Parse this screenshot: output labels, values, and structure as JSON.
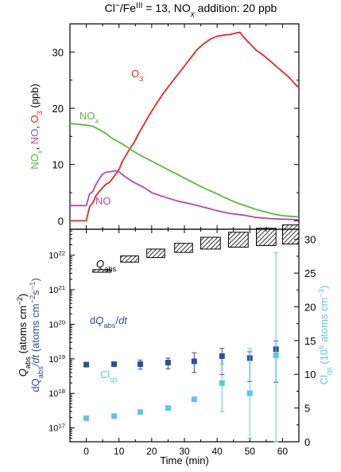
{
  "figure": {
    "title_parts": [
      "Cl",
      "−",
      "/Fe",
      "III",
      " = 13, NO",
      "x",
      " addition: 20 ppb"
    ],
    "xlabel": "Time (min)"
  },
  "colors": {
    "o3": "#ee2222",
    "nox": "#5cb83a",
    "no": "#b24aa8",
    "dq": "#2e4d9e",
    "cl": "#5cc8de",
    "axis": "#000000"
  },
  "chart_data": [
    {
      "type": "line",
      "panel": "top",
      "ylabel_parts": [
        "NO",
        "x",
        ", ",
        "NO",
        ", ",
        "O",
        "3",
        " (ppb)"
      ],
      "xlim": [
        -5,
        65
      ],
      "ylim": [
        -1.5,
        35
      ],
      "x_ticks": [
        0,
        10,
        20,
        30,
        40,
        50,
        60
      ],
      "y_ticks": [
        0,
        10,
        20,
        30
      ],
      "series": [
        {
          "name": "O3",
          "label_parts": [
            "O",
            "3"
          ],
          "x": [
            -5,
            0,
            0.4,
            1,
            2,
            3,
            4,
            5,
            6,
            7,
            8,
            9,
            10,
            11,
            12,
            13,
            14,
            15,
            16,
            17,
            18,
            20,
            22,
            24,
            26,
            28,
            30,
            32,
            34,
            36,
            38,
            40,
            42,
            44,
            46,
            47,
            48,
            50,
            52,
            54,
            56,
            58,
            60,
            62,
            64,
            65
          ],
          "y": [
            0,
            0,
            1,
            2.5,
            3.2,
            4.5,
            5.2,
            5.9,
            6.5,
            6.8,
            7.5,
            8.3,
            9.1,
            10.5,
            11.5,
            12.5,
            13.4,
            14.3,
            15.5,
            16.5,
            17.5,
            19.5,
            21.3,
            23,
            24.5,
            26,
            27.5,
            29,
            30.5,
            31.5,
            32.3,
            32.8,
            33,
            33.1,
            33.4,
            33.5,
            32.7,
            31.5,
            30.3,
            29.5,
            28.5,
            27.5,
            26.5,
            25.5,
            24.2,
            23.7
          ]
        },
        {
          "name": "NOx",
          "label_parts": [
            "NO",
            "x"
          ],
          "x": [
            -5,
            0,
            2,
            4,
            6,
            8,
            10,
            12,
            14,
            16,
            18,
            20,
            22,
            24,
            26,
            28,
            30,
            32,
            34,
            36,
            38,
            40,
            42,
            44,
            46,
            48,
            50,
            52,
            54,
            56,
            58,
            60,
            62,
            65
          ],
          "y": [
            17.3,
            17,
            16.8,
            16.2,
            15.5,
            14.6,
            14,
            13.3,
            12.5,
            11.8,
            11.2,
            10.6,
            10,
            9.4,
            8.8,
            8.2,
            7.6,
            7,
            6.4,
            5.8,
            5.3,
            4.8,
            4.2,
            3.7,
            3.2,
            2.8,
            2.4,
            2,
            1.7,
            1.4,
            1.1,
            0.9,
            0.8,
            0.7
          ]
        },
        {
          "name": "NO",
          "label_parts": [
            "NO"
          ],
          "x": [
            -5,
            0,
            0.4,
            1,
            2,
            3,
            4,
            5,
            6,
            7,
            8,
            9,
            10,
            12,
            14,
            16,
            18,
            20,
            24,
            28,
            32,
            36,
            40,
            44,
            48,
            52,
            56,
            60,
            65
          ],
          "y": [
            2.7,
            2.7,
            3.5,
            4.8,
            5.2,
            6.5,
            7.5,
            8.3,
            8.6,
            8.7,
            8.8,
            8.9,
            8.7,
            7.8,
            7,
            6.4,
            5.8,
            5,
            4.2,
            3.5,
            3,
            2.4,
            1.8,
            1.3,
            1,
            0.6,
            0.4,
            0.3,
            0.2
          ]
        }
      ]
    },
    {
      "type": "scatter",
      "panel": "bottom",
      "xlim": [
        -5,
        65
      ],
      "y_log_range_exp": [
        16.6,
        22.75
      ],
      "y_ticks_exp": [
        17,
        18,
        19,
        20,
        21,
        22
      ],
      "y_right_ylabel_parts": [
        "Cl",
        "qs",
        " (10",
        "6",
        " atoms cm",
        "−3",
        ")"
      ],
      "y_right_lim": [
        0,
        31.5
      ],
      "y_right_ticks": [
        0,
        5,
        10,
        15,
        20,
        25,
        30
      ],
      "y_left_label_line1_parts": [
        "Q",
        "abs",
        " (atoms cm",
        "−2",
        ")"
      ],
      "y_left_label_line2_parts": [
        "dQ",
        "abs",
        "/dt",
        " (atoms cm",
        "−2",
        "s",
        "−1",
        ")"
      ],
      "dq_dt": {
        "name_parts": [
          "d",
          "Q",
          "abs",
          "/",
          "dt"
        ],
        "x": [
          0,
          8.5,
          16.5,
          25,
          33,
          41.5,
          50,
          58
        ],
        "y": [
          6.8e+18,
          7e+18,
          7e+18,
          7.8e+18,
          8.5e+18,
          1.2e+19,
          1.05e+19,
          1.9e+19
        ],
        "err_low": [
          6.3e+18,
          6.4e+18,
          5e+18,
          5.1e+18,
          4e+18,
          3.5e+18,
          2.2e+18,
          2.1e+18
        ],
        "err_high": [
          7.3e+18,
          7.6e+18,
          9.2e+18,
          1.05e+19,
          1.5e+19,
          2e+19,
          1.6e+19,
          3.3e+19
        ]
      },
      "cl_qs": {
        "name_parts": [
          "Cl",
          "qs"
        ],
        "x": [
          0,
          8.5,
          16.5,
          25,
          33,
          41.5,
          50,
          58
        ],
        "y": [
          3.5,
          3.8,
          4.4,
          5.0,
          6.3,
          8.7,
          7.2,
          12.8
        ],
        "err_low": [
          3.4,
          3.7,
          4.3,
          4.9,
          6.1,
          4.5,
          0.5,
          0
        ],
        "err_high": [
          3.6,
          3.9,
          4.5,
          5.1,
          6.5,
          11.5,
          13.8,
          28
        ]
      },
      "q_abs": {
        "name_parts": [
          "Q",
          "abs"
        ],
        "x_start": [
          2,
          10.5,
          18.5,
          27,
          35,
          43.5,
          52,
          60
        ],
        "x_end": [
          7.5,
          16,
          24,
          32.5,
          41,
          49.5,
          58,
          65
        ],
        "y_low": [
          3.2e+21,
          6.3e+21,
          8.5e+21,
          1.2e+22,
          1.5e+22,
          1.7e+22,
          1.9e+22,
          2.1e+22
        ],
        "y_high": [
          3.8e+21,
          9.5e+21,
          1.5e+22,
          2.2e+22,
          3.3e+22,
          4.6e+22,
          6e+22,
          7.5e+22
        ]
      }
    }
  ]
}
